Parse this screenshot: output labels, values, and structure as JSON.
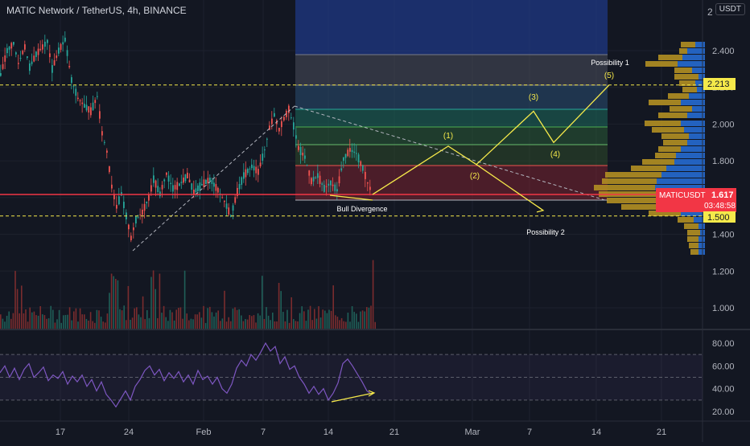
{
  "header": {
    "title": "MATIC Network / TetherUS, 4h, BINANCE",
    "currency": "USDT",
    "scale_top": "2"
  },
  "price_axis": {
    "ticks": [
      "2.400",
      "2.200",
      "2.000",
      "1.800",
      "1.600",
      "1.400",
      "1.200",
      "1.000"
    ],
    "tick_values": [
      2.4,
      2.2,
      2.0,
      1.8,
      1.6,
      1.4,
      1.2,
      1.0
    ]
  },
  "rsi_axis": {
    "ticks": [
      "80.00",
      "60.00",
      "40.00",
      "20.00"
    ],
    "tick_values": [
      80,
      60,
      40,
      20
    ],
    "band_upper": 70,
    "band_mid": 50,
    "band_lower": 30
  },
  "time_axis": {
    "labels": [
      "17",
      "24",
      "Feb",
      "7",
      "14",
      "21",
      "Mar",
      "7",
      "14",
      "21"
    ]
  },
  "badges": {
    "level_high": "2.213",
    "symbol": "MATICUSDT",
    "last_price": "1.617",
    "countdown": "03:48:58",
    "level_low": "1.500"
  },
  "annotations": {
    "possibility_1": "Possibility 1",
    "possibility_2": "Possibility 2",
    "bull_divergence": "Bull Divergence",
    "wave_labels": [
      "(1)",
      "(2)",
      "(3)",
      "(4)",
      "(5)"
    ]
  },
  "colors": {
    "background": "#131722",
    "bull": "#26a69a",
    "bear": "#ef5350",
    "projection": "#f5e94a",
    "rsi_line": "#7e57c2",
    "price_line": "#f23645",
    "volume_profile_gold": "#c9a227",
    "volume_profile_blue": "#2962ff"
  },
  "chart_data": {
    "type": "candlestick",
    "title": "MATIC Network / TetherUS, 4h, BINANCE",
    "ylim": [
      0.9,
      2.62
    ],
    "horizontal_levels": [
      2.213,
      1.617,
      1.5
    ],
    "price_series": [
      [
        0,
        2.27
      ],
      [
        8,
        2.4
      ],
      [
        16,
        2.44
      ],
      [
        22,
        2.33
      ],
      [
        30,
        2.42
      ],
      [
        36,
        2.31
      ],
      [
        44,
        2.38
      ],
      [
        52,
        2.42
      ],
      [
        58,
        2.45
      ],
      [
        64,
        2.3
      ],
      [
        72,
        2.4
      ],
      [
        80,
        2.46
      ],
      [
        88,
        2.24
      ],
      [
        96,
        2.14
      ],
      [
        104,
        2.1
      ],
      [
        112,
        2.07
      ],
      [
        120,
        2.15
      ],
      [
        126,
        1.95
      ],
      [
        132,
        1.85
      ],
      [
        138,
        1.66
      ],
      [
        144,
        1.55
      ],
      [
        150,
        1.62
      ],
      [
        156,
        1.5
      ],
      [
        162,
        1.38
      ],
      [
        168,
        1.48
      ],
      [
        176,
        1.52
      ],
      [
        184,
        1.6
      ],
      [
        190,
        1.7
      ],
      [
        198,
        1.62
      ],
      [
        206,
        1.73
      ],
      [
        214,
        1.65
      ],
      [
        222,
        1.67
      ],
      [
        232,
        1.72
      ],
      [
        240,
        1.63
      ],
      [
        250,
        1.67
      ],
      [
        260,
        1.7
      ],
      [
        270,
        1.64
      ],
      [
        278,
        1.58
      ],
      [
        286,
        1.5
      ],
      [
        294,
        1.63
      ],
      [
        302,
        1.72
      ],
      [
        312,
        1.77
      ],
      [
        320,
        1.74
      ],
      [
        328,
        1.86
      ],
      [
        334,
        1.98
      ],
      [
        340,
        2.05
      ],
      [
        346,
        1.97
      ],
      [
        352,
        2.03
      ],
      [
        358,
        2.08
      ],
      [
        364,
        1.99
      ],
      [
        370,
        1.87
      ],
      [
        378,
        1.82
      ],
      [
        386,
        1.69
      ],
      [
        394,
        1.72
      ],
      [
        402,
        1.65
      ],
      [
        410,
        1.68
      ],
      [
        418,
        1.64
      ],
      [
        426,
        1.81
      ],
      [
        434,
        1.86
      ],
      [
        442,
        1.84
      ],
      [
        450,
        1.76
      ],
      [
        456,
        1.68
      ],
      [
        462,
        1.62
      ]
    ],
    "projection_1": [
      [
        463,
        1.617
      ],
      [
        557,
        1.88
      ],
      [
        592,
        1.78
      ],
      [
        663,
        2.07
      ],
      [
        688,
        1.9
      ],
      [
        757,
        2.213
      ]
    ],
    "projection_2": [
      [
        592,
        1.78
      ],
      [
        675,
        1.53
      ]
    ],
    "rsi_series": [
      [
        0,
        54
      ],
      [
        6,
        60
      ],
      [
        12,
        50
      ],
      [
        18,
        58
      ],
      [
        24,
        48
      ],
      [
        30,
        57
      ],
      [
        36,
        62
      ],
      [
        42,
        50
      ],
      [
        48,
        54
      ],
      [
        54,
        59
      ],
      [
        60,
        47
      ],
      [
        66,
        52
      ],
      [
        72,
        49
      ],
      [
        78,
        55
      ],
      [
        84,
        44
      ],
      [
        90,
        51
      ],
      [
        96,
        46
      ],
      [
        102,
        52
      ],
      [
        108,
        42
      ],
      [
        114,
        48
      ],
      [
        120,
        38
      ],
      [
        126,
        46
      ],
      [
        132,
        35
      ],
      [
        138,
        30
      ],
      [
        144,
        24
      ],
      [
        150,
        31
      ],
      [
        156,
        38
      ],
      [
        162,
        30
      ],
      [
        168,
        42
      ],
      [
        174,
        48
      ],
      [
        180,
        56
      ],
      [
        186,
        60
      ],
      [
        192,
        52
      ],
      [
        198,
        57
      ],
      [
        204,
        47
      ],
      [
        210,
        54
      ],
      [
        216,
        49
      ],
      [
        222,
        55
      ],
      [
        228,
        46
      ],
      [
        234,
        52
      ],
      [
        240,
        44
      ],
      [
        246,
        56
      ],
      [
        252,
        48
      ],
      [
        258,
        51
      ],
      [
        264,
        44
      ],
      [
        270,
        50
      ],
      [
        276,
        40
      ],
      [
        282,
        36
      ],
      [
        288,
        44
      ],
      [
        294,
        58
      ],
      [
        300,
        65
      ],
      [
        306,
        60
      ],
      [
        312,
        70
      ],
      [
        318,
        65
      ],
      [
        324,
        72
      ],
      [
        330,
        80
      ],
      [
        336,
        73
      ],
      [
        342,
        77
      ],
      [
        348,
        62
      ],
      [
        354,
        68
      ],
      [
        360,
        57
      ],
      [
        366,
        60
      ],
      [
        372,
        50
      ],
      [
        378,
        44
      ],
      [
        384,
        36
      ],
      [
        390,
        42
      ],
      [
        396,
        35
      ],
      [
        402,
        40
      ],
      [
        408,
        30
      ],
      [
        414,
        36
      ],
      [
        420,
        45
      ],
      [
        426,
        62
      ],
      [
        432,
        66
      ],
      [
        438,
        60
      ],
      [
        444,
        53
      ],
      [
        450,
        46
      ],
      [
        456,
        38
      ],
      [
        462,
        35
      ]
    ],
    "xlabel": "",
    "ylabel": ""
  }
}
